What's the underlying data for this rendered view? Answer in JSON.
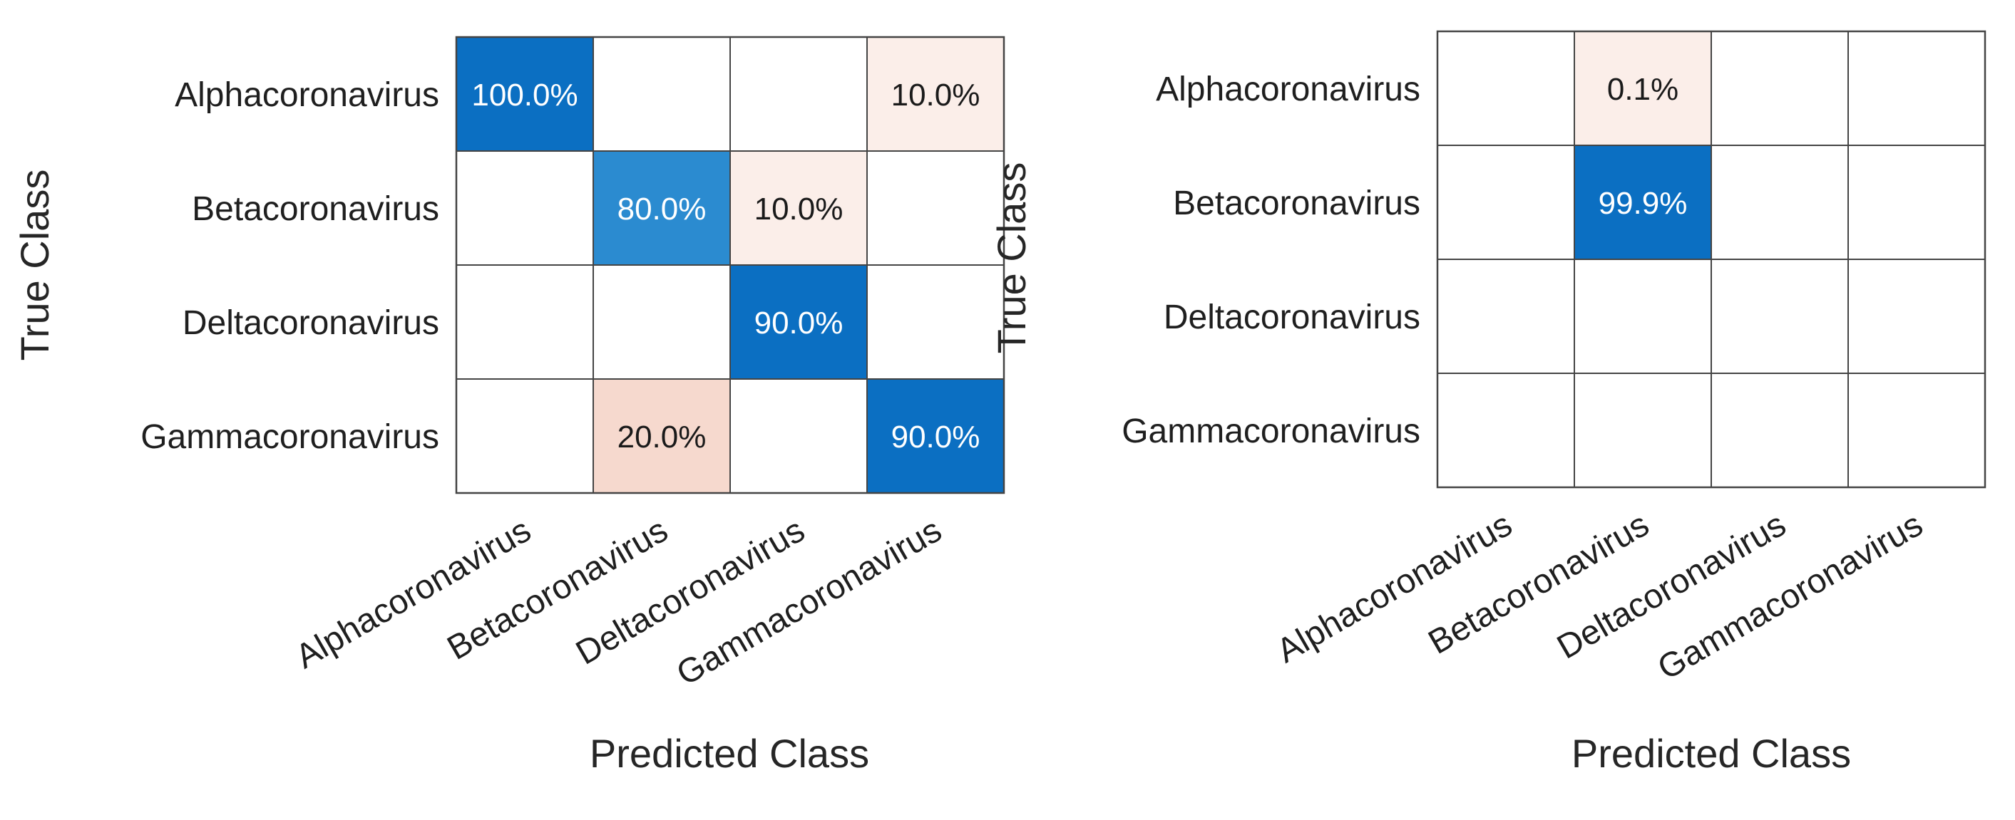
{
  "chart_data": [
    {
      "type": "heatmap",
      "subtype": "confusion-matrix",
      "title": "",
      "xlabel": "Predicted Class",
      "ylabel": "True Class",
      "row_labels": [
        "Alphacoronavirus",
        "Betacoronavirus",
        "Deltacoronavirus",
        "Gammacoronavirus"
      ],
      "col_labels": [
        "Alphacoronavirus",
        "Betacoronavirus",
        "Deltacoronavirus",
        "Gammacoronavirus"
      ],
      "values": [
        [
          100.0,
          null,
          null,
          10.0
        ],
        [
          null,
          80.0,
          10.0,
          null
        ],
        [
          null,
          null,
          90.0,
          null
        ],
        [
          null,
          20.0,
          null,
          90.0
        ]
      ],
      "cell_labels": [
        [
          "100.0%",
          "",
          "",
          "10.0%"
        ],
        [
          "",
          "80.0%",
          "10.0%",
          ""
        ],
        [
          "",
          "",
          "90.0%",
          ""
        ],
        [
          "",
          "20.0%",
          "",
          "90.0%"
        ]
      ],
      "value_unit": "%"
    },
    {
      "type": "heatmap",
      "subtype": "confusion-matrix",
      "title": "",
      "xlabel": "Predicted Class",
      "ylabel": "True Class",
      "row_labels": [
        "Alphacoronavirus",
        "Betacoronavirus",
        "Deltacoronavirus",
        "Gammacoronavirus"
      ],
      "col_labels": [
        "Alphacoronavirus",
        "Betacoronavirus",
        "Deltacoronavirus",
        "Gammacoronavirus"
      ],
      "values": [
        [
          null,
          0.1,
          null,
          null
        ],
        [
          null,
          99.9,
          null,
          null
        ],
        [
          null,
          null,
          null,
          null
        ],
        [
          null,
          null,
          null,
          null
        ]
      ],
      "cell_labels": [
        [
          "",
          "0.1%",
          "",
          ""
        ],
        [
          "",
          "99.9%",
          "",
          ""
        ],
        [
          "",
          "",
          "",
          ""
        ],
        [
          "",
          "",
          "",
          ""
        ]
      ],
      "value_unit": "%"
    }
  ],
  "colors": {
    "diagonal_strong": "#0b6fc2",
    "diagonal_medium": "#2b8bd0",
    "offdiag_light": "#fbeee9",
    "offdiag_medium": "#f6d9ce",
    "grid": "#444444",
    "text_on_dark": "#ffffff",
    "text_on_light": "#1a1a1a"
  }
}
